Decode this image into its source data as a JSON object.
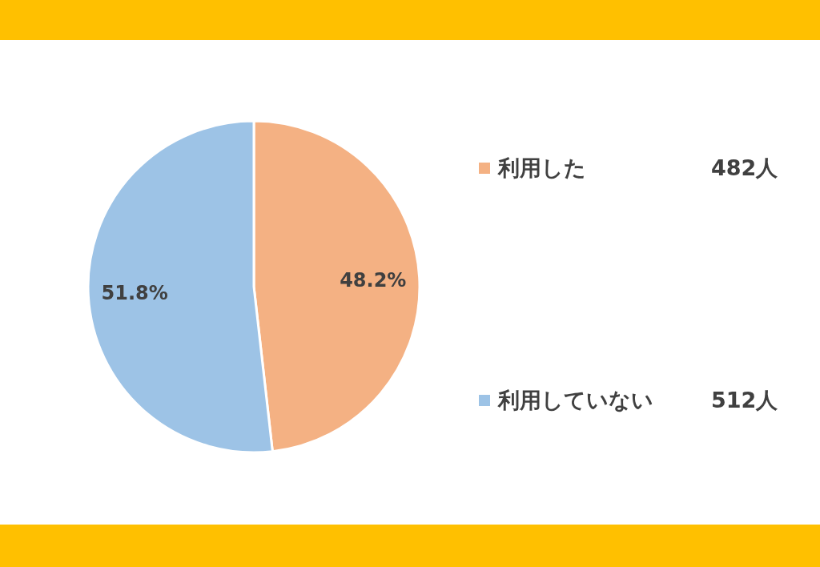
{
  "chart_data": {
    "type": "pie",
    "categories": [
      "利用した",
      "利用していない"
    ],
    "values": [
      48.2,
      51.8
    ],
    "colors": [
      "#f4b183",
      "#9dc3e6"
    ],
    "value_labels": [
      "48.2%",
      "51.8%"
    ],
    "annotations": [
      "482人",
      "512人"
    ],
    "legend": "right"
  }
}
